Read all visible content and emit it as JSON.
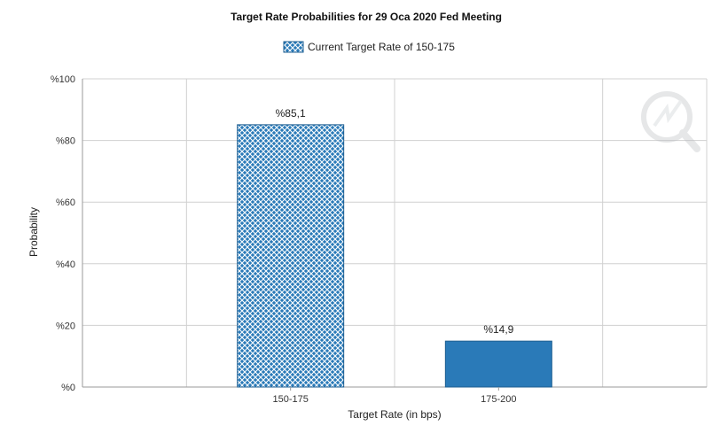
{
  "chart_data": {
    "type": "bar",
    "title": "Target Rate Probabilities for 29 Oca 2020 Fed Meeting",
    "xlabel": "Target Rate (in bps)",
    "ylabel": "Probability",
    "categories": [
      "150-175",
      "175-200"
    ],
    "values": [
      85.1,
      14.9
    ],
    "value_labels": [
      "%85,1",
      "%14,9"
    ],
    "highlighted_index": 0,
    "legend": {
      "label": "Current Target Rate of 150-175",
      "position": "top-center"
    },
    "ylim": [
      0,
      100
    ],
    "y_ticks": [
      0,
      20,
      40,
      60,
      80,
      100
    ],
    "y_tick_labels": [
      "%0",
      "%20",
      "%40",
      "%60",
      "%80",
      "%100"
    ],
    "grid": true,
    "colors": {
      "bar": "#2a7ab8",
      "bar_edge": "#1f5f91",
      "grid": "#d0d0d0",
      "axis": "#9a9a9a"
    }
  },
  "watermark": {
    "icon": "quote-magnifier-icon"
  }
}
